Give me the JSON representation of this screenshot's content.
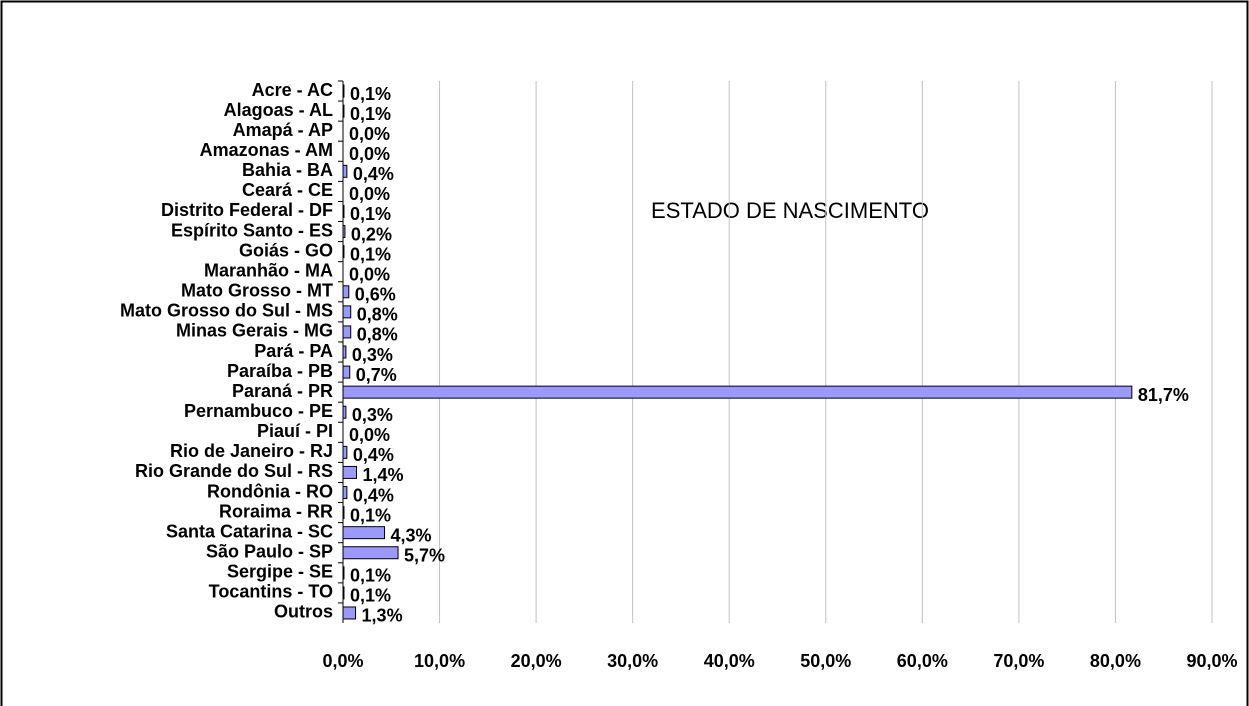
{
  "chart_data": {
    "type": "barh",
    "title": "ESTADO DE NASCIMENTO",
    "categories": [
      "Acre - AC",
      "Alagoas - AL",
      "Amapá - AP",
      "Amazonas - AM",
      "Bahia - BA",
      "Ceará - CE",
      "Distrito Federal - DF",
      "Espírito Santo - ES",
      "Goiás - GO",
      "Maranhão - MA",
      "Mato Grosso - MT",
      "Mato Grosso do Sul - MS",
      "Minas Gerais - MG",
      "Pará - PA",
      "Paraíba - PB",
      "Paraná - PR",
      "Pernambuco - PE",
      "Piauí - PI",
      "Rio de Janeiro - RJ",
      "Rio Grande do Sul - RS",
      "Rondônia - RO",
      "Roraima - RR",
      "Santa Catarina - SC",
      "São Paulo - SP",
      "Sergipe - SE",
      "Tocantins - TO",
      "Outros"
    ],
    "values": [
      0.1,
      0.1,
      0.0,
      0.0,
      0.4,
      0.0,
      0.1,
      0.2,
      0.1,
      0.0,
      0.6,
      0.8,
      0.8,
      0.3,
      0.7,
      81.7,
      0.3,
      0.0,
      0.4,
      1.4,
      0.4,
      0.1,
      4.3,
      5.7,
      0.1,
      0.1,
      1.3
    ],
    "value_labels": [
      "0,1%",
      "0,1%",
      "0,0%",
      "0,0%",
      "0,4%",
      "0,0%",
      "0,1%",
      "0,2%",
      "0,1%",
      "0,0%",
      "0,6%",
      "0,8%",
      "0,8%",
      "0,3%",
      "0,7%",
      "81,7%",
      "0,3%",
      "0,0%",
      "0,4%",
      "1,4%",
      "0,4%",
      "0,1%",
      "4,3%",
      "5,7%",
      "0,1%",
      "0,1%",
      "1,3%"
    ],
    "color": "#9999ff",
    "xlim": [
      0,
      90
    ],
    "xticks": [
      {
        "value": 0,
        "label": "0,0%"
      },
      {
        "value": 10,
        "label": "10,0%"
      },
      {
        "value": 20,
        "label": "20,0%"
      },
      {
        "value": 30,
        "label": "30,0%"
      },
      {
        "value": 40,
        "label": "40,0%"
      },
      {
        "value": 50,
        "label": "50,0%"
      },
      {
        "value": 60,
        "label": "60,0%"
      },
      {
        "value": 70,
        "label": "70,0%"
      },
      {
        "value": 80,
        "label": "80,0%"
      },
      {
        "value": 90,
        "label": "90,0%"
      }
    ],
    "grid": true
  }
}
